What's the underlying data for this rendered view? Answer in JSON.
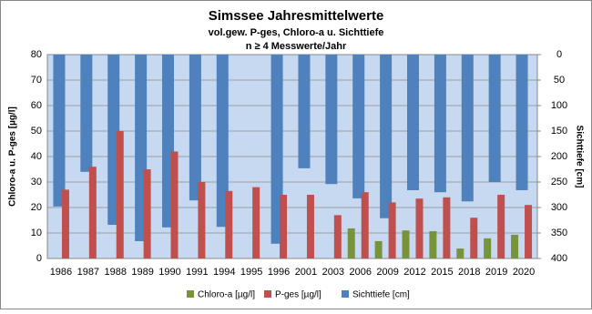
{
  "chart_data": {
    "type": "bar",
    "title": "Simssee Jahresmittelwerte",
    "subtitle": [
      "vol.gew. P-ges, Chloro-a u. Sichttiefe",
      "n ≥ 4 Messwerte/Jahr"
    ],
    "y_label": "Chloro-a  u.  P-ges [µg/l]",
    "y2_label": "Sichttiefe [cm]",
    "categories": [
      "1986",
      "1987",
      "1988",
      "1989",
      "1990",
      "1991",
      "1994",
      "1995",
      "1996",
      "2001",
      "2003",
      "2006",
      "2009",
      "2012",
      "2015",
      "2018",
      "2019",
      "2020"
    ],
    "series": [
      {
        "name": "Chloro-a [µg/l]",
        "color": "#77933c",
        "values": [
          null,
          null,
          null,
          null,
          null,
          null,
          null,
          null,
          null,
          null,
          null,
          11.8,
          6.8,
          11,
          10.7,
          3.9,
          7.9,
          9.3
        ]
      },
      {
        "name": "P-ges [µg/l]",
        "color": "#c0504d",
        "values": [
          27,
          36,
          50,
          35,
          42,
          30,
          26.5,
          28,
          25,
          25,
          17,
          26,
          22,
          23.5,
          24,
          16,
          25,
          21
        ]
      },
      {
        "name": "Sichttiefe [cm]",
        "color": "#4f81bd",
        "axis": "y2",
        "values": [
          298,
          230,
          334,
          366,
          339,
          286,
          338,
          null,
          371,
          223,
          254,
          282,
          321,
          266,
          270,
          288,
          250,
          266
        ]
      }
    ],
    "ylim": [
      0,
      80
    ],
    "yticks": [
      0,
      10,
      20,
      30,
      40,
      50,
      60,
      70,
      80
    ],
    "y2lim": [
      0,
      400
    ],
    "y2ticks": [
      0,
      50,
      100,
      150,
      200,
      250,
      300,
      350,
      400
    ],
    "y2_reversed": true,
    "grid": true,
    "legend": "bottom"
  }
}
